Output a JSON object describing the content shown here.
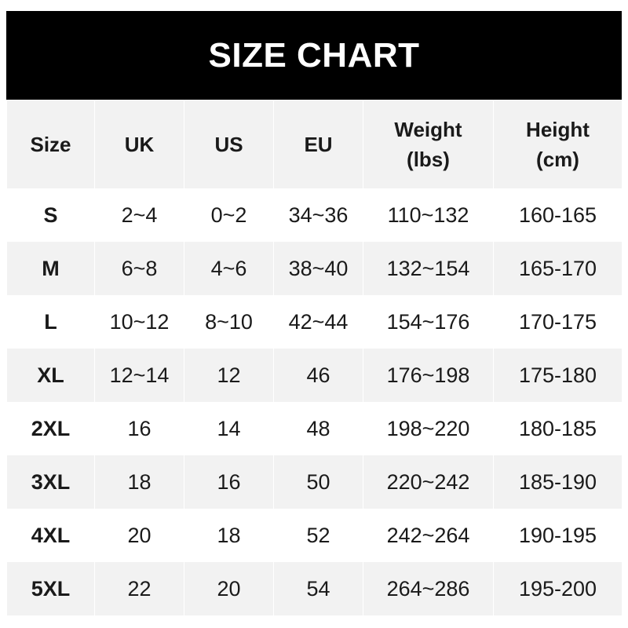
{
  "title": "SIZE CHART",
  "headers": [
    {
      "line1": "Size",
      "line2": ""
    },
    {
      "line1": "UK",
      "line2": ""
    },
    {
      "line1": "US",
      "line2": ""
    },
    {
      "line1": "EU",
      "line2": ""
    },
    {
      "line1": "Weight",
      "line2": "(lbs)"
    },
    {
      "line1": "Height",
      "line2": "(cm)"
    }
  ],
  "rows": [
    [
      "S",
      "2~4",
      "0~2",
      "34~36",
      "110~132",
      "160-165"
    ],
    [
      "M",
      "6~8",
      "4~6",
      "38~40",
      "132~154",
      "165-170"
    ],
    [
      "L",
      "10~12",
      "8~10",
      "42~44",
      "154~176",
      "170-175"
    ],
    [
      "XL",
      "12~14",
      "12",
      "46",
      "176~198",
      "175-180"
    ],
    [
      "2XL",
      "16",
      "14",
      "48",
      "198~220",
      "180-185"
    ],
    [
      "3XL",
      "18",
      "16",
      "50",
      "220~242",
      "185-190"
    ],
    [
      "4XL",
      "20",
      "18",
      "52",
      "242~264",
      "190-195"
    ],
    [
      "5XL",
      "22",
      "20",
      "54",
      "264~286",
      "195-200"
    ]
  ],
  "colors": {
    "banner": "#000000",
    "stripe": "#f2f2f2",
    "text": "#1a1a1a"
  }
}
